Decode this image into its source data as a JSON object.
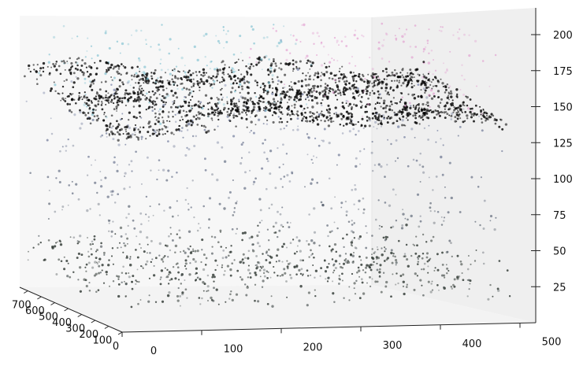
{
  "chart_data": {
    "type": "scatter",
    "projection": "3d",
    "title": "",
    "xlabel": "",
    "ylabel": "",
    "zlabel": "",
    "grid": false,
    "legend": "none",
    "axes": {
      "x": {
        "ticks": [
          0,
          100,
          200,
          300,
          400,
          500
        ],
        "range": [
          0,
          520
        ]
      },
      "y": {
        "ticks": [
          0,
          100,
          200,
          300,
          400,
          500,
          600,
          700
        ],
        "range": [
          0,
          760
        ]
      },
      "z": {
        "ticks": [
          25,
          50,
          75,
          100,
          125,
          150,
          175,
          200
        ],
        "range": [
          0,
          215
        ]
      }
    },
    "colors": {
      "teal_top": "#5fb3c6",
      "blue_mid": "#6a78b5",
      "magenta": "#b45cb0",
      "pink": "#dd88c8",
      "dark_base": "#2c3530",
      "pane_left": "#f7f7f7",
      "pane_right": "#efefef",
      "pane_floor": "#f4f4f4"
    },
    "surface": {
      "description_none": "",
      "sample_points": [
        {
          "x": 0,
          "y": 700,
          "z": 150
        },
        {
          "x": 100,
          "y": 600,
          "z": 140
        },
        {
          "x": 200,
          "y": 500,
          "z": 130
        },
        {
          "x": 300,
          "y": 400,
          "z": 130
        },
        {
          "x": 400,
          "y": 300,
          "z": 135
        },
        {
          "x": 500,
          "y": 200,
          "z": 145
        },
        {
          "x": 0,
          "y": 300,
          "z": 110
        },
        {
          "x": 250,
          "y": 300,
          "z": 118
        },
        {
          "x": 500,
          "y": 300,
          "z": 112
        },
        {
          "x": 100,
          "y": 0,
          "z": 60
        },
        {
          "x": 300,
          "y": 0,
          "z": 55
        },
        {
          "x": 500,
          "y": 0,
          "z": 58
        }
      ]
    }
  }
}
